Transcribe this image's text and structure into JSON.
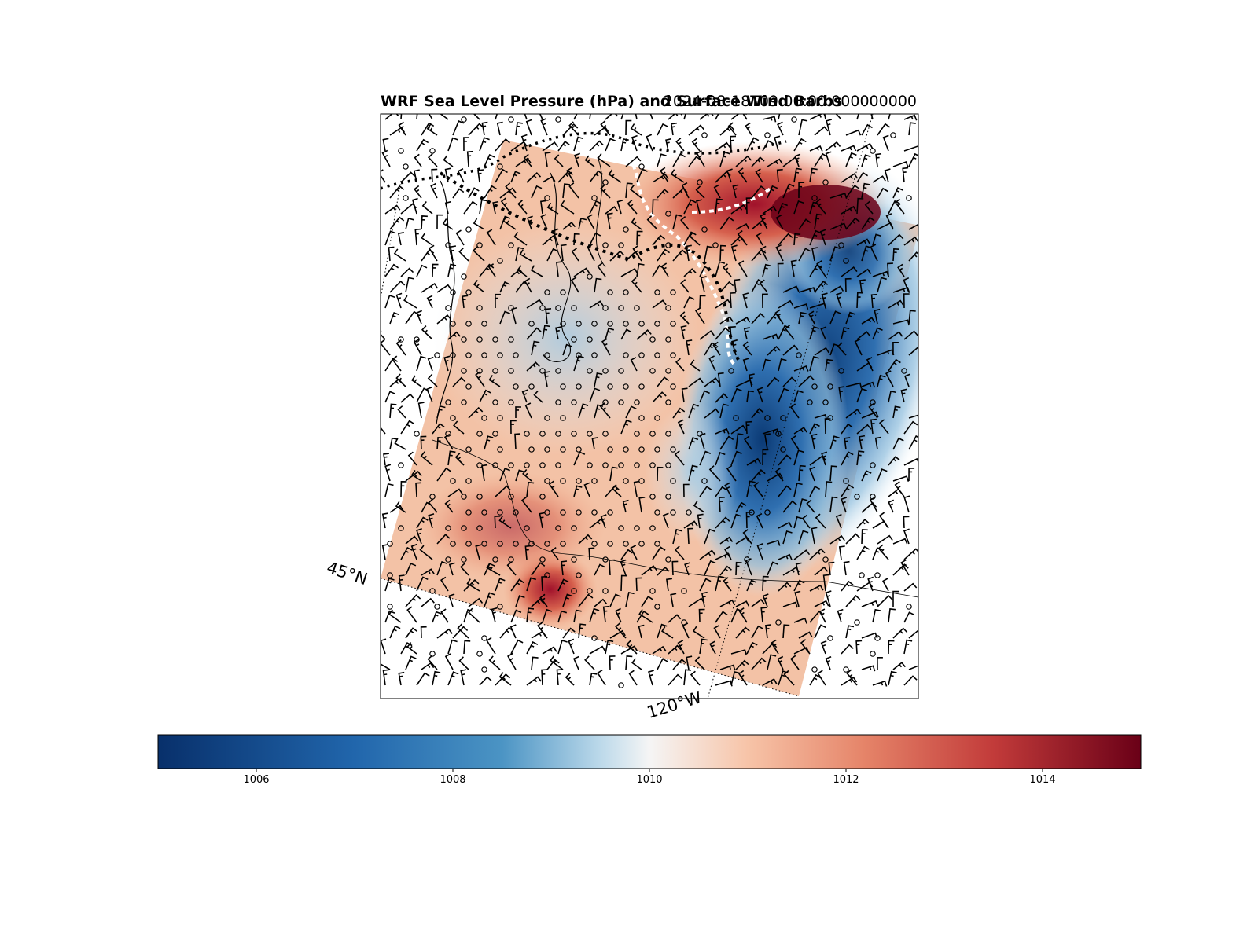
{
  "figure": {
    "title": "WRF Sea Level Pressure (hPa) and Surface Wind Barbs",
    "time_label": "2024-08-18T09:00:00.000000000"
  },
  "map": {
    "lat_label": "45°N",
    "lon_label": "120°W",
    "variable": "sea level pressure",
    "units": "hPa",
    "overlay": "surface wind barbs",
    "colormap": "RdBu_r"
  },
  "colorbar": {
    "min": 1005,
    "max": 1015,
    "ticks": [
      {
        "value": 1006,
        "label": "1006"
      },
      {
        "value": 1008,
        "label": "1008"
      },
      {
        "value": 1010,
        "label": "1010"
      },
      {
        "value": 1012,
        "label": "1012"
      },
      {
        "value": 1014,
        "label": "1014"
      }
    ],
    "colors": {
      "low": "#08306b",
      "mid_low": "#4b94c4",
      "mid": "#f5f5f5",
      "mid_high": "#e58368",
      "high": "#6a0017"
    }
  }
}
